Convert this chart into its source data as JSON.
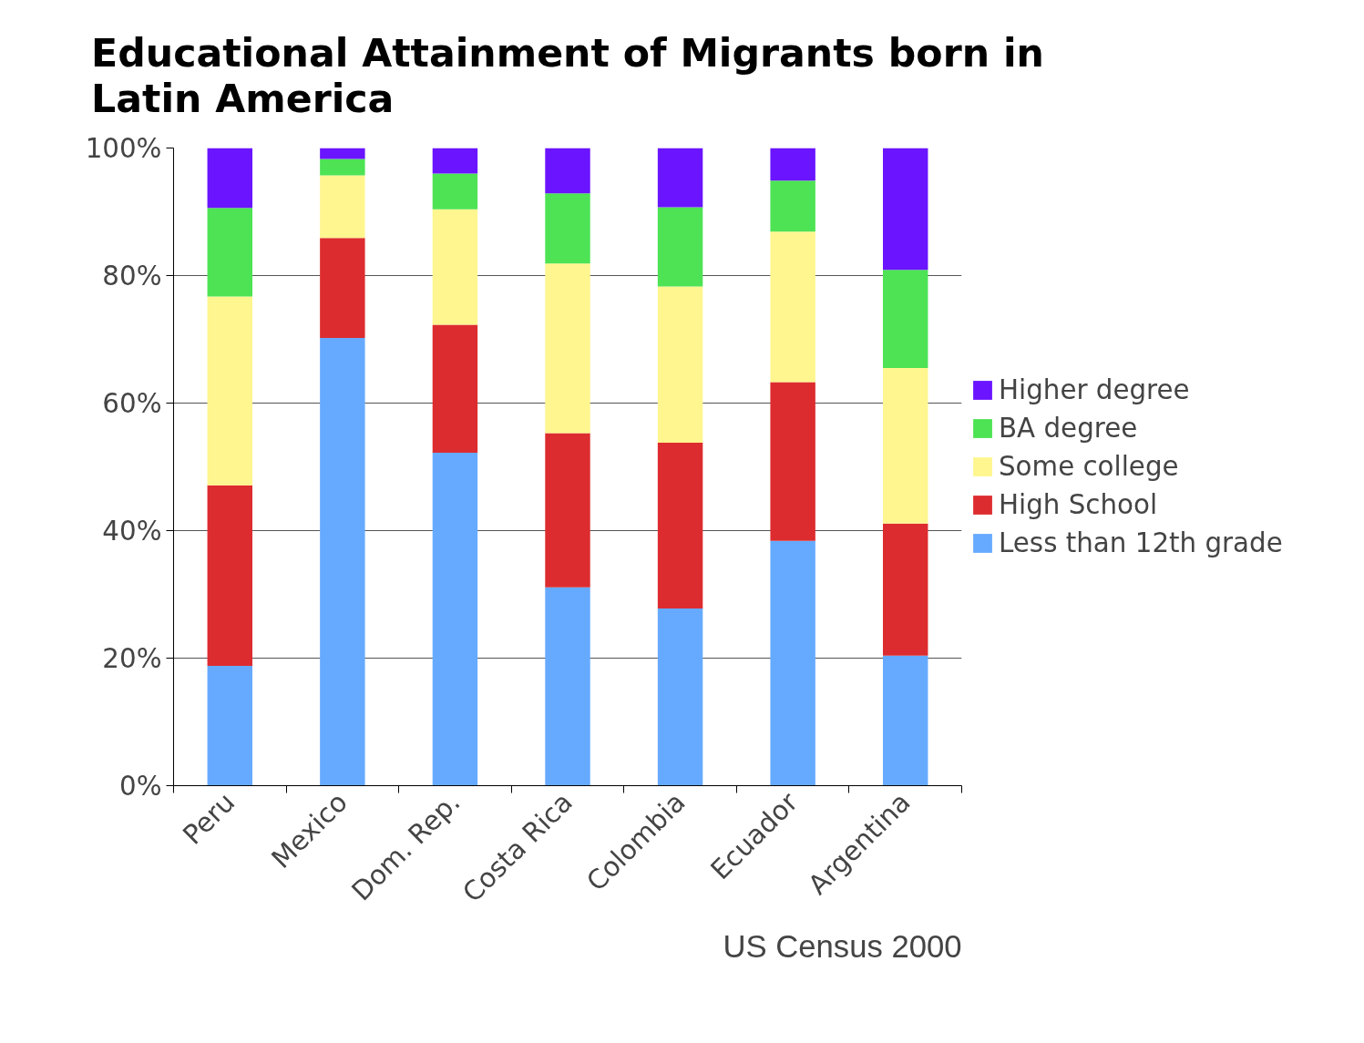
{
  "chart_data": {
    "type": "bar",
    "stacked": true,
    "title": "Educational Attainment of Migrants born in Latin America",
    "categories": [
      "Peru",
      "Mexico",
      "Dom. Rep.",
      "Costa Rica",
      "Colombia",
      "Ecuador",
      "Argentina"
    ],
    "series": [
      {
        "name": "Less than 12th grade",
        "color": "#66aaff",
        "values": [
          18.8,
          70.2,
          52.2,
          31.1,
          27.8,
          38.4,
          20.4
        ]
      },
      {
        "name": "High School",
        "color": "#dd2c2f",
        "values": [
          28.3,
          15.7,
          20.1,
          24.2,
          26.0,
          24.9,
          20.7
        ]
      },
      {
        "name": "Some college",
        "color": "#fff68f",
        "values": [
          29.6,
          9.8,
          18.1,
          26.6,
          24.5,
          23.6,
          24.4
        ]
      },
      {
        "name": "BA degree",
        "color": "#4de354",
        "values": [
          13.9,
          2.6,
          5.6,
          11.0,
          12.4,
          8.0,
          15.4
        ]
      },
      {
        "name": "Higher degree",
        "color": "#6a14ff",
        "values": [
          9.4,
          1.7,
          4.0,
          7.1,
          9.3,
          5.1,
          19.1
        ]
      }
    ],
    "ylim": [
      0,
      100
    ],
    "yticks": [
      {
        "value": 0,
        "label": "0%"
      },
      {
        "value": 20,
        "label": "20%"
      },
      {
        "value": 40,
        "label": "40%"
      },
      {
        "value": 60,
        "label": "60%"
      },
      {
        "value": 80,
        "label": "80%"
      },
      {
        "value": 100,
        "label": "100%"
      }
    ],
    "grid": "y",
    "legend": "right",
    "annotations": [
      "US Census 2000"
    ]
  }
}
